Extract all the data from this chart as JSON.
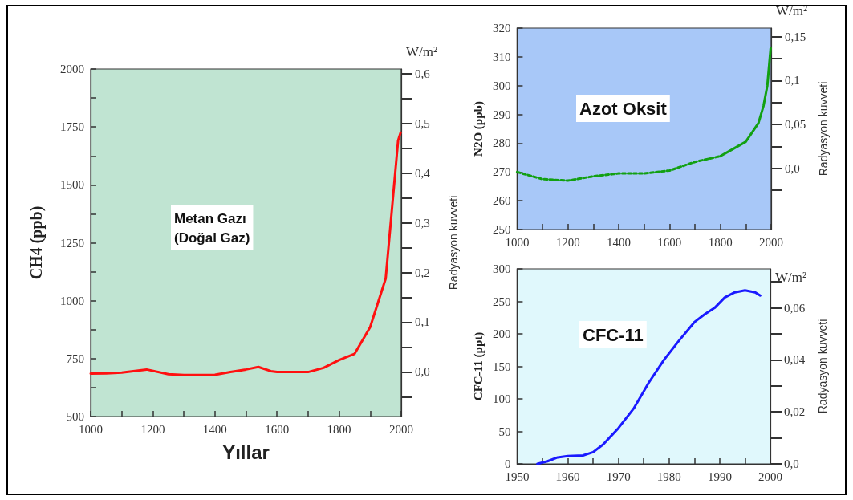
{
  "chart_data": [
    {
      "type": "line",
      "xlabel": "Yıllar",
      "ylabel": "CH4 (ppb)",
      "y2label": "Radyasyon kuvveti",
      "annotations": [
        "Metan Gazı\n(Doğal Gaz)",
        "W/m²"
      ],
      "x": [
        1000,
        1050,
        1100,
        1180,
        1250,
        1300,
        1400,
        1450,
        1500,
        1540,
        1580,
        1600,
        1700,
        1750,
        1800,
        1850,
        1900,
        1950,
        1970,
        1990,
        1998
      ],
      "series": [
        {
          "color": "#ff1010",
          "values": [
            685,
            686,
            690,
            703,
            683,
            679,
            680,
            692,
            703,
            714,
            696,
            692,
            692,
            710,
            744,
            771,
            886,
            1096,
            1394,
            1692,
            1726
          ]
        }
      ],
      "xlim": [
        1000,
        2000
      ],
      "xticks": [
        1000,
        {
          "value": 1100,
          "label": null
        },
        1200,
        {
          "value": 1300,
          "label": null
        },
        1400,
        {
          "value": 1500,
          "label": null
        },
        1600,
        {
          "value": 1700,
          "label": null
        },
        1800,
        {
          "value": 1900,
          "label": null
        },
        2000
      ],
      "ylim": [
        500,
        2000
      ],
      "yticks": [
        500,
        {
          "value": 625,
          "label": null
        },
        750,
        {
          "value": 875,
          "label": null
        },
        1000,
        {
          "value": 1125,
          "label": null
        },
        1250,
        {
          "value": 1375,
          "label": null
        },
        1500,
        {
          "value": 1625,
          "label": null
        },
        1750,
        {
          "value": 1875,
          "label": null
        },
        2000
      ],
      "y2lim": [
        -0.09,
        0.61
      ],
      "y2ticks": [
        {
          "value": -0.05,
          "label": null
        },
        {
          "value": 0,
          "label": "0,0"
        },
        {
          "value": 0.05,
          "label": null
        },
        {
          "value": 0.1,
          "label": "0,1"
        },
        {
          "value": 0.15,
          "label": null
        },
        {
          "value": 0.2,
          "label": "0,2"
        },
        {
          "value": 0.25,
          "label": null
        },
        {
          "value": 0.3,
          "label": "0,3"
        },
        {
          "value": 0.35,
          "label": null
        },
        {
          "value": 0.4,
          "label": "0,4"
        },
        {
          "value": 0.45,
          "label": null
        },
        {
          "value": 0.5,
          "label": "0,5"
        },
        {
          "value": 0.55,
          "label": null
        },
        {
          "value": 0.6,
          "label": "0,6"
        }
      ],
      "grid": false,
      "marker": "none"
    },
    {
      "type": "line",
      "ylabel": "N2O (ppb)",
      "y2label": "Radyasyon kuvveti",
      "annotations": [
        "Azot Oksit",
        "W/m²"
      ],
      "series": [
        {
          "color": "#12a012",
          "line_style": "dashed",
          "x": [
            1000,
            1100,
            1200,
            1300,
            1400,
            1500,
            1600,
            1700,
            1800
          ],
          "values": [
            270,
            267.5,
            267,
            268.5,
            269.5,
            269.5,
            270.5,
            273.5,
            275.5
          ]
        },
        {
          "color": "#12a012",
          "line_style": "solid",
          "x": [
            1800,
            1850,
            1900,
            1950,
            1970,
            1985,
            1998
          ],
          "values": [
            275.5,
            278,
            280.5,
            287,
            293,
            300,
            313
          ]
        }
      ],
      "xlim": [
        1000,
        2000
      ],
      "xticks": [
        1000,
        {
          "value": 1100,
          "label": null
        },
        1200,
        {
          "value": 1300,
          "label": null
        },
        1400,
        {
          "value": 1500,
          "label": null
        },
        1600,
        {
          "value": 1700,
          "label": null
        },
        1800,
        {
          "value": 1900,
          "label": null
        },
        2000
      ],
      "ylim": [
        250,
        320
      ],
      "yticks": [
        250,
        260,
        270,
        280,
        290,
        300,
        310,
        320
      ],
      "y2lim": [
        -0.07,
        0.16
      ],
      "y2ticks": [
        {
          "value": -0.025,
          "label": null
        },
        {
          "value": 0,
          "label": "0,0"
        },
        {
          "value": 0.025,
          "label": null
        },
        {
          "value": 0.05,
          "label": "0,05"
        },
        {
          "value": 0.075,
          "label": null
        },
        {
          "value": 0.1,
          "label": "0,1"
        },
        {
          "value": 0.125,
          "label": null
        },
        {
          "value": 0.15,
          "label": "0,15"
        }
      ],
      "grid": false,
      "marker": "none"
    },
    {
      "type": "line",
      "ylabel": "CFC-11 (ppt)",
      "y2label": "Radyasyon kuvveti",
      "annotations": [
        "CFC-11",
        "W/m²"
      ],
      "x": [
        1954,
        1956,
        1958,
        1960,
        1963,
        1965,
        1967,
        1970,
        1973,
        1976,
        1979,
        1982,
        1985,
        1987,
        1989,
        1991,
        1993,
        1995,
        1997,
        1998
      ],
      "series": [
        {
          "color": "#1a1aff",
          "values": [
            0,
            4,
            10,
            12,
            13,
            18,
            30,
            55,
            85,
            125,
            160,
            190,
            218,
            230,
            240,
            256,
            264,
            267,
            264,
            259
          ]
        }
      ],
      "xlim": [
        1950,
        2000
      ],
      "xticks": [
        1950,
        {
          "value": 1955,
          "label": null
        },
        1960,
        {
          "value": 1965,
          "label": null
        },
        1970,
        {
          "value": 1975,
          "label": null
        },
        1980,
        {
          "value": 1985,
          "label": null
        },
        1990,
        {
          "value": 1995,
          "label": null
        },
        2000
      ],
      "ylim": [
        0,
        300
      ],
      "yticks": [
        0,
        50,
        100,
        150,
        200,
        250,
        300
      ],
      "y2lim": [
        0,
        0.075
      ],
      "y2ticks": [
        {
          "value": 0,
          "label": "0,0"
        },
        {
          "value": 0.01,
          "label": null
        },
        {
          "value": 0.02,
          "label": "0,02"
        },
        {
          "value": 0.03,
          "label": null
        },
        {
          "value": 0.04,
          "label": "0,04"
        },
        {
          "value": 0.05,
          "label": null
        },
        {
          "value": 0.06,
          "label": "0,06"
        },
        {
          "value": 0.07,
          "label": null
        }
      ],
      "grid": false,
      "marker": "none"
    }
  ]
}
